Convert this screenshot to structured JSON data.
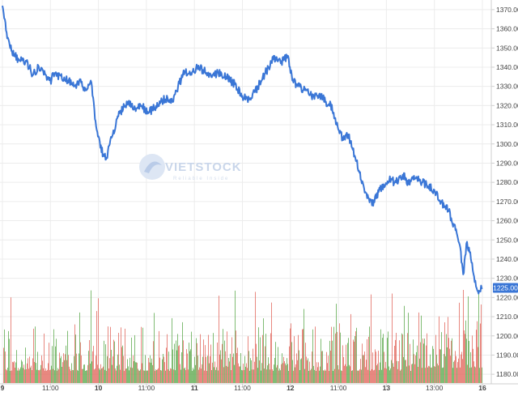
{
  "watermark": {
    "brand": "VIETSTOCK",
    "tagline": "Reliable Inside"
  },
  "colors": {
    "price_line": "#3a76d6",
    "volume_up": "#5aa84a",
    "volume_down": "#e0645a",
    "grid": "#ececec",
    "axis_text": "#444444",
    "last_price_bg": "#3a76d6"
  },
  "chart_data": {
    "type": "line",
    "y_axis": {
      "position": "right",
      "min": 1175,
      "max": 1375,
      "ticks": [
        1180.0,
        1190.0,
        1200.0,
        1210.0,
        1220.0,
        1230.0,
        1240.0,
        1250.0,
        1260.0,
        1270.0,
        1280.0,
        1290.0,
        1300.0,
        1310.0,
        1320.0,
        1330.0,
        1340.0,
        1350.0,
        1360.0,
        1370.0
      ],
      "tick_labels": [
        "1180.00",
        "1190.00",
        "1200.00",
        "1210.00",
        "1220.00",
        "1230.00",
        "1240.00",
        "1250.00",
        "1260.00",
        "1270.00",
        "1280.00",
        "1290.00",
        "1300.00",
        "1310.00",
        "1320.00",
        "1330.00",
        "1340.00",
        "1350.00",
        "1360.00",
        "1370.00"
      ]
    },
    "x_axis": {
      "ticks": [
        {
          "label": "9",
          "t": 0.0,
          "bold": true
        },
        {
          "label": "11:00",
          "t": 0.5,
          "bold": false
        },
        {
          "label": "10",
          "t": 1.0,
          "bold": true
        },
        {
          "label": "11:00",
          "t": 1.5,
          "bold": false
        },
        {
          "label": "11",
          "t": 2.0,
          "bold": true
        },
        {
          "label": "11:00",
          "t": 2.5,
          "bold": false
        },
        {
          "label": "12",
          "t": 3.0,
          "bold": true
        },
        {
          "label": "11:00",
          "t": 3.5,
          "bold": false
        },
        {
          "label": "13",
          "t": 4.0,
          "bold": true
        },
        {
          "label": "13:00",
          "t": 4.5,
          "bold": false
        },
        {
          "label": "16",
          "t": 5.0,
          "bold": true
        }
      ],
      "t_max": 5.0
    },
    "last_price": {
      "value": 1225.0,
      "label": "1225.00"
    },
    "price_series": {
      "name": "",
      "points": [
        [
          0.0,
          1372
        ],
        [
          0.05,
          1355
        ],
        [
          0.1,
          1348
        ],
        [
          0.17,
          1344
        ],
        [
          0.25,
          1343
        ],
        [
          0.32,
          1336
        ],
        [
          0.38,
          1340
        ],
        [
          0.45,
          1336
        ],
        [
          0.5,
          1333
        ],
        [
          0.55,
          1337
        ],
        [
          0.62,
          1334
        ],
        [
          0.68,
          1333
        ],
        [
          0.75,
          1330
        ],
        [
          0.82,
          1332
        ],
        [
          0.87,
          1328
        ],
        [
          0.92,
          1333
        ],
        [
          0.97,
          1312
        ],
        [
          1.02,
          1298
        ],
        [
          1.08,
          1292
        ],
        [
          1.15,
          1305
        ],
        [
          1.22,
          1316
        ],
        [
          1.3,
          1322
        ],
        [
          1.37,
          1318
        ],
        [
          1.45,
          1320
        ],
        [
          1.52,
          1316
        ],
        [
          1.58,
          1319
        ],
        [
          1.65,
          1322
        ],
        [
          1.72,
          1324
        ],
        [
          1.78,
          1322
        ],
        [
          1.83,
          1330
        ],
        [
          1.9,
          1338
        ],
        [
          1.97,
          1336
        ],
        [
          2.03,
          1340
        ],
        [
          2.1,
          1338
        ],
        [
          2.17,
          1336
        ],
        [
          2.25,
          1337
        ],
        [
          2.33,
          1335
        ],
        [
          2.42,
          1331
        ],
        [
          2.5,
          1325
        ],
        [
          2.57,
          1323
        ],
        [
          2.63,
          1327
        ],
        [
          2.7,
          1333
        ],
        [
          2.75,
          1338
        ],
        [
          2.82,
          1344
        ],
        [
          2.9,
          1342
        ],
        [
          2.97,
          1346
        ],
        [
          3.02,
          1333
        ],
        [
          3.08,
          1330
        ],
        [
          3.15,
          1328
        ],
        [
          3.22,
          1325
        ],
        [
          3.3,
          1326
        ],
        [
          3.37,
          1322
        ],
        [
          3.42,
          1321
        ],
        [
          3.48,
          1310
        ],
        [
          3.55,
          1302
        ],
        [
          3.6,
          1305
        ],
        [
          3.65,
          1297
        ],
        [
          3.72,
          1285
        ],
        [
          3.78,
          1275
        ],
        [
          3.85,
          1268
        ],
        [
          3.92,
          1275
        ],
        [
          3.97,
          1279
        ],
        [
          4.03,
          1281
        ],
        [
          4.1,
          1280
        ],
        [
          4.17,
          1284
        ],
        [
          4.23,
          1279
        ],
        [
          4.3,
          1282
        ],
        [
          4.37,
          1280
        ],
        [
          4.43,
          1278
        ],
        [
          4.5,
          1276
        ],
        [
          4.57,
          1270
        ],
        [
          4.65,
          1265
        ],
        [
          4.72,
          1255
        ],
        [
          4.77,
          1246
        ],
        [
          4.8,
          1232
        ],
        [
          4.84,
          1249
        ],
        [
          4.88,
          1240
        ],
        [
          4.92,
          1228
        ],
        [
          4.96,
          1222
        ],
        [
          5.0,
          1225
        ]
      ]
    },
    "volume_series": {
      "axis_max": 100
    }
  }
}
